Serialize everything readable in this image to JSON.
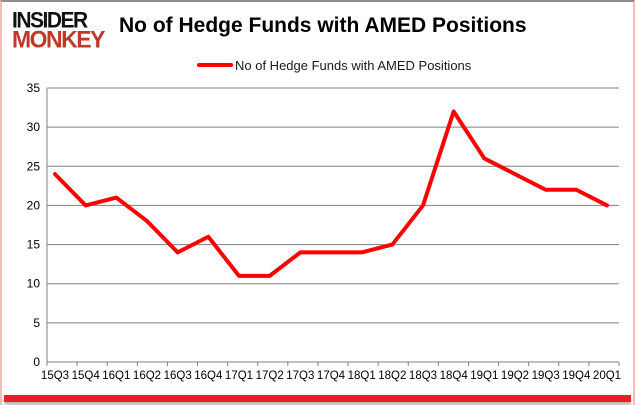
{
  "brand": {
    "line1": "INSIDER",
    "line2": "MONKEY",
    "color_line1": "#111111",
    "color_line2": "#c13828"
  },
  "header": {
    "title": "No of Hedge Funds with AMED Positions"
  },
  "legend": {
    "label": "No of Hedge Funds with AMED Positions",
    "swatch_color": "#ff0000"
  },
  "chart_data": {
    "type": "line",
    "title": "No of Hedge Funds with AMED Positions",
    "categories": [
      "15Q3",
      "15Q4",
      "16Q1",
      "16Q2",
      "16Q3",
      "16Q4",
      "17Q1",
      "17Q2",
      "17Q3",
      "17Q4",
      "18Q1",
      "18Q2",
      "18Q3",
      "18Q4",
      "19Q1",
      "19Q2",
      "19Q3",
      "19Q4",
      "20Q1"
    ],
    "series": [
      {
        "name": "No of Hedge Funds with AMED Positions",
        "color": "#ff0000",
        "values": [
          24,
          20,
          21,
          18,
          14,
          16,
          11,
          11,
          14,
          14,
          14,
          15,
          20,
          32,
          26,
          24,
          22,
          22,
          20
        ]
      }
    ],
    "xlabel": "",
    "ylabel": "",
    "ylim": [
      0,
      35
    ],
    "ytick_step": 5,
    "grid": true,
    "grid_color": "#808080",
    "axis_color": "#808080",
    "tick_label_color": "#000000",
    "legend_position": "top-center"
  }
}
